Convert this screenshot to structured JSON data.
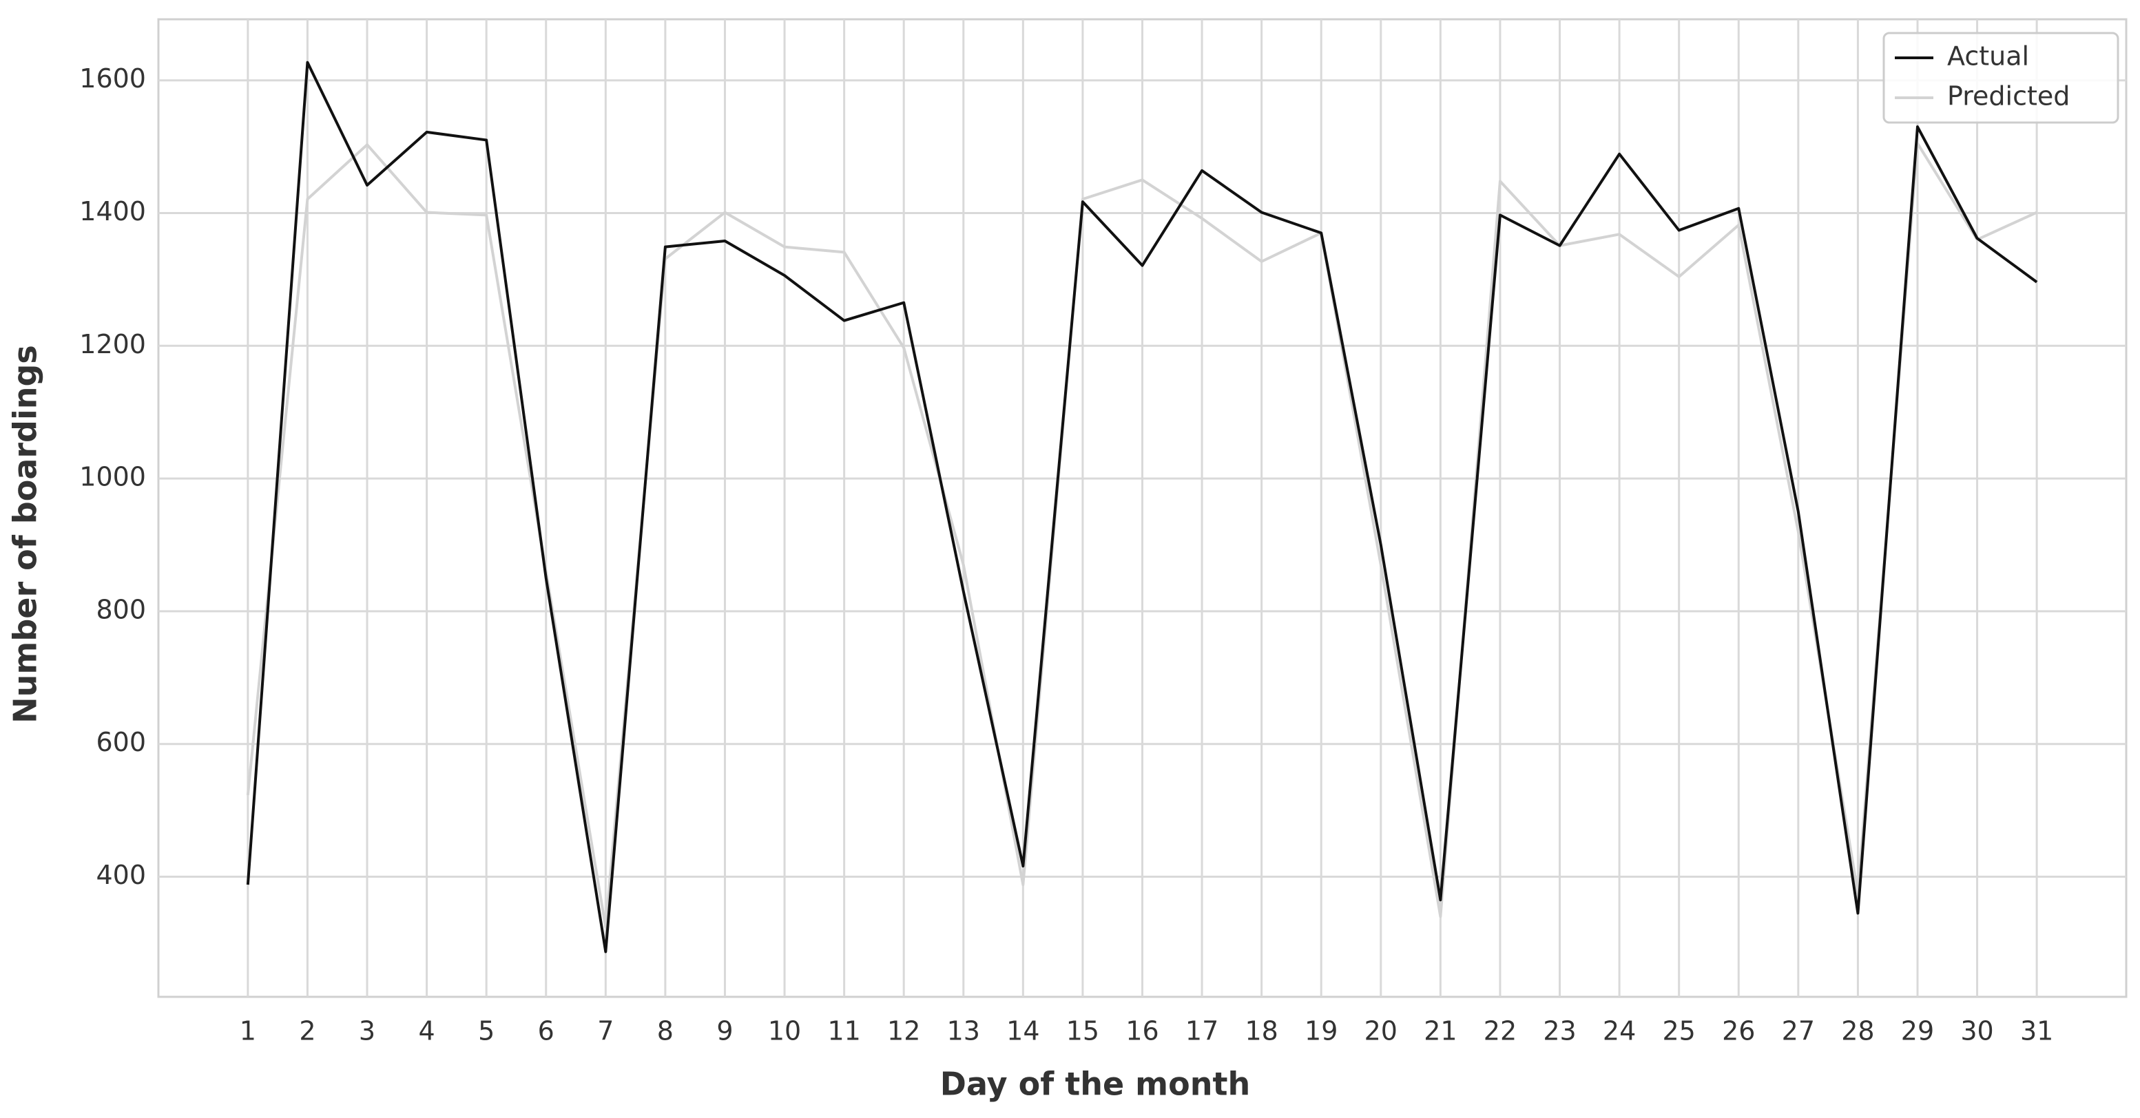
{
  "chart_data": {
    "type": "line",
    "x_label": "Day of the month",
    "y_label": "Number of boardings",
    "x": [
      1,
      2,
      3,
      4,
      5,
      6,
      7,
      8,
      9,
      10,
      11,
      12,
      13,
      14,
      15,
      16,
      17,
      18,
      19,
      20,
      21,
      22,
      23,
      24,
      25,
      26,
      27,
      28,
      29,
      30,
      31
    ],
    "series": [
      {
        "name": "Actual",
        "color": "#111111",
        "values": [
          388,
          1627,
          1442,
          1522,
          1510,
          850,
          287,
          1349,
          1358,
          1306,
          1238,
          1265,
          830,
          416,
          1417,
          1321,
          1464,
          1401,
          1370,
          900,
          365,
          1397,
          1351,
          1489,
          1374,
          1407,
          950,
          345,
          1530,
          1362,
          1296
        ]
      },
      {
        "name": "Predicted",
        "color": "#d3d3d3",
        "values": [
          523,
          1421,
          1503,
          1401,
          1397,
          860,
          324,
          1331,
          1401,
          1349,
          1341,
          1197,
          870,
          388,
          1421,
          1450,
          1392,
          1327,
          1370,
          870,
          340,
          1448,
          1351,
          1368,
          1304,
          1382,
          920,
          375,
          1505,
          1360,
          1401
        ]
      }
    ],
    "xlim": [
      -0.5,
      32.5
    ],
    "xticks": [
      1,
      2,
      3,
      4,
      5,
      6,
      7,
      8,
      9,
      10,
      11,
      12,
      13,
      14,
      15,
      16,
      17,
      18,
      19,
      20,
      21,
      22,
      23,
      24,
      25,
      26,
      27,
      28,
      29,
      30,
      31
    ],
    "ylim": [
      219,
      1692
    ],
    "yticks": [
      400,
      600,
      800,
      1000,
      1200,
      1400,
      1600
    ],
    "grid": true,
    "legend": "upper right"
  }
}
